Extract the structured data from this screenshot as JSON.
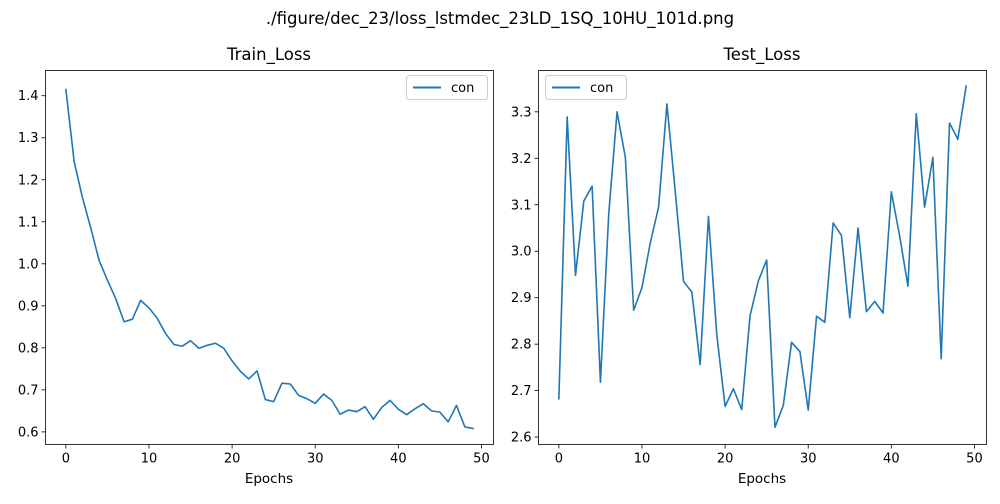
{
  "figure": {
    "suptitle": "./figure/dec_23/loss_lstmdec_23LD_1SQ_10HU_101d.png"
  },
  "colors": {
    "series": "#1f77b4"
  },
  "chart_data": [
    {
      "type": "line",
      "title": "Train_Loss",
      "xlabel": "Epochs",
      "ylabel": "",
      "xlim": [
        -2.45,
        51.45
      ],
      "ylim": [
        0.57,
        1.46
      ],
      "xticks": [
        0,
        10,
        20,
        30,
        40,
        50
      ],
      "yticks": [
        0.6,
        0.7,
        0.8,
        0.9,
        1.0,
        1.1,
        1.2,
        1.3,
        1.4
      ],
      "ytick_labels": [
        "0.6",
        "0.7",
        "0.8",
        "0.9",
        "1.0",
        "1.1",
        "1.2",
        "1.3",
        "1.4"
      ],
      "legend_position": "upper right",
      "grid": false,
      "series": [
        {
          "name": "con",
          "x": [
            0,
            1,
            2,
            3,
            4,
            5,
            6,
            7,
            8,
            9,
            10,
            11,
            12,
            13,
            14,
            15,
            16,
            17,
            18,
            19,
            20,
            21,
            22,
            23,
            24,
            25,
            26,
            27,
            28,
            29,
            30,
            31,
            32,
            33,
            34,
            35,
            36,
            37,
            38,
            39,
            40,
            41,
            42,
            43,
            44,
            45,
            46,
            47,
            48,
            49
          ],
          "values": [
            1.415,
            1.243,
            1.157,
            1.085,
            1.008,
            0.961,
            0.917,
            0.862,
            0.868,
            0.913,
            0.895,
            0.87,
            0.834,
            0.808,
            0.804,
            0.817,
            0.799,
            0.806,
            0.811,
            0.799,
            0.769,
            0.744,
            0.726,
            0.745,
            0.677,
            0.672,
            0.716,
            0.714,
            0.687,
            0.679,
            0.668,
            0.69,
            0.675,
            0.642,
            0.652,
            0.648,
            0.66,
            0.63,
            0.658,
            0.675,
            0.654,
            0.641,
            0.655,
            0.667,
            0.65,
            0.647,
            0.624,
            0.663,
            0.612,
            0.608
          ]
        }
      ]
    },
    {
      "type": "line",
      "title": "Test_Loss",
      "xlabel": "Epochs",
      "ylabel": "",
      "xlim": [
        -2.45,
        51.45
      ],
      "ylim": [
        2.584,
        3.389
      ],
      "xticks": [
        0,
        10,
        20,
        30,
        40,
        50
      ],
      "yticks": [
        2.6,
        2.7,
        2.8,
        2.9,
        3.0,
        3.1,
        3.2,
        3.3
      ],
      "ytick_labels": [
        "2.6",
        "2.7",
        "2.8",
        "2.9",
        "3.0",
        "3.1",
        "3.2",
        "3.3"
      ],
      "legend_position": "upper left",
      "grid": false,
      "series": [
        {
          "name": "con",
          "x": [
            0,
            1,
            2,
            3,
            4,
            5,
            6,
            7,
            8,
            9,
            10,
            11,
            12,
            13,
            14,
            15,
            16,
            17,
            18,
            19,
            20,
            21,
            22,
            23,
            24,
            25,
            26,
            27,
            28,
            29,
            30,
            31,
            32,
            33,
            34,
            35,
            36,
            37,
            38,
            39,
            40,
            41,
            42,
            43,
            44,
            45,
            46,
            47,
            48,
            49
          ],
          "values": [
            2.682,
            3.289,
            2.948,
            3.108,
            3.14,
            2.718,
            3.08,
            3.3,
            3.202,
            2.873,
            2.922,
            3.018,
            3.095,
            3.317,
            3.129,
            2.935,
            2.912,
            2.756,
            3.075,
            2.82,
            2.666,
            2.704,
            2.659,
            2.861,
            2.936,
            2.981,
            2.621,
            2.668,
            2.804,
            2.784,
            2.658,
            2.86,
            2.847,
            3.061,
            3.034,
            2.857,
            3.05,
            2.87,
            2.892,
            2.867,
            3.128,
            3.033,
            2.925,
            3.296,
            3.095,
            3.202,
            2.769,
            3.276,
            3.241,
            3.356
          ]
        }
      ]
    }
  ]
}
